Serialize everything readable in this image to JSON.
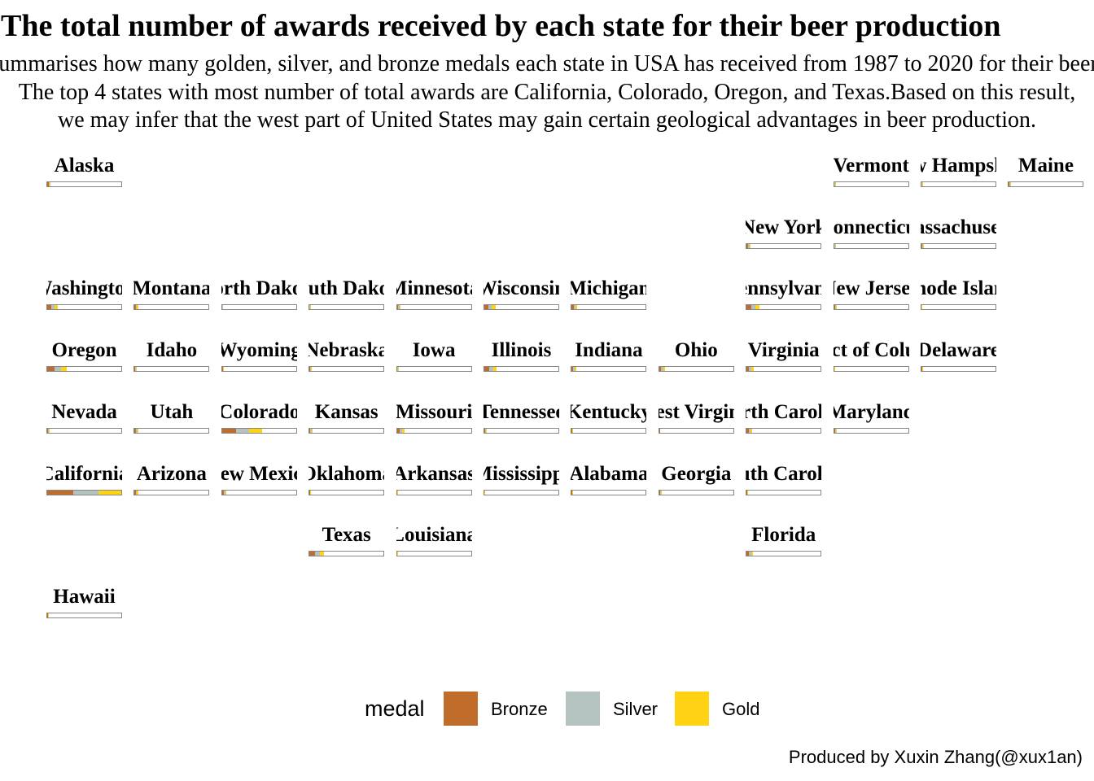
{
  "header": {
    "title": "The total number of awards received by each state for their beer production",
    "subtitle_lines": [
      "This graph summarises how many golden, silver, and bronze medals each state in USA has received from 1987 to 2020 for their beer production.",
      "The top 4 states with most number of total awards are California, Colorado, Oregon, and Texas.Based on this result,",
      "we may infer that the west  part of United States may gain certain geological advantages in beer production."
    ]
  },
  "caption": "Produced by Xuxin Zhang(@xux1an)",
  "colors": {
    "Bronze": "#C06C2A",
    "Silver": "#B5C3C0",
    "Gold": "#FFD314"
  },
  "legend": {
    "title": "medal",
    "items": [
      "Bronze",
      "Silver",
      "Gold"
    ]
  },
  "chart_data": {
    "type": "bar",
    "layout": "state-grid",
    "medals": [
      "Bronze",
      "Silver",
      "Gold"
    ],
    "states": [
      {
        "name": "Alaska",
        "col": 0,
        "row": 0,
        "bronze": 30,
        "silver": 28,
        "gold": 25
      },
      {
        "name": "Vermont",
        "col": 9,
        "row": 0,
        "bronze": 15,
        "silver": 15,
        "gold": 12
      },
      {
        "name": "New Hampshire",
        "col": 10,
        "row": 0,
        "bronze": 8,
        "silver": 7,
        "gold": 6
      },
      {
        "name": "Maine",
        "col": 11,
        "row": 0,
        "bronze": 12,
        "silver": 12,
        "gold": 10
      },
      {
        "name": "New York",
        "col": 8,
        "row": 1,
        "bronze": 35,
        "silver": 32,
        "gold": 28
      },
      {
        "name": "Connecticut",
        "col": 9,
        "row": 1,
        "bronze": 10,
        "silver": 9,
        "gold": 8
      },
      {
        "name": "Massachusetts",
        "col": 10,
        "row": 1,
        "bronze": 25,
        "silver": 22,
        "gold": 20
      },
      {
        "name": "Washington",
        "col": 0,
        "row": 2,
        "bronze": 90,
        "silver": 85,
        "gold": 80
      },
      {
        "name": "Montana",
        "col": 1,
        "row": 2,
        "bronze": 30,
        "silver": 28,
        "gold": 25
      },
      {
        "name": "North Dakota",
        "col": 2,
        "row": 2,
        "bronze": 2,
        "silver": 2,
        "gold": 1
      },
      {
        "name": "South Dakota",
        "col": 3,
        "row": 2,
        "bronze": 4,
        "silver": 3,
        "gold": 2
      },
      {
        "name": "Minnesota",
        "col": 4,
        "row": 2,
        "bronze": 35,
        "silver": 30,
        "gold": 28
      },
      {
        "name": "Wisconsin",
        "col": 5,
        "row": 2,
        "bronze": 95,
        "silver": 90,
        "gold": 85
      },
      {
        "name": "Michigan",
        "col": 6,
        "row": 2,
        "bronze": 50,
        "silver": 45,
        "gold": 40
      },
      {
        "name": "Pennsylvania",
        "col": 8,
        "row": 2,
        "bronze": 110,
        "silver": 100,
        "gold": 95
      },
      {
        "name": "New Jersey",
        "col": 9,
        "row": 2,
        "bronze": 20,
        "silver": 18,
        "gold": 16
      },
      {
        "name": "Rhode Island",
        "col": 10,
        "row": 2,
        "bronze": 5,
        "silver": 4,
        "gold": 3
      },
      {
        "name": "Oregon",
        "col": 0,
        "row": 3,
        "bronze": 170,
        "silver": 160,
        "gold": 150
      },
      {
        "name": "Idaho",
        "col": 1,
        "row": 3,
        "bronze": 15,
        "silver": 14,
        "gold": 12
      },
      {
        "name": "Wyoming",
        "col": 2,
        "row": 3,
        "bronze": 15,
        "silver": 13,
        "gold": 12
      },
      {
        "name": "Nebraska",
        "col": 3,
        "row": 3,
        "bronze": 15,
        "silver": 14,
        "gold": 12
      },
      {
        "name": "Iowa",
        "col": 4,
        "row": 3,
        "bronze": 15,
        "silver": 13,
        "gold": 11
      },
      {
        "name": "Illinois",
        "col": 5,
        "row": 3,
        "bronze": 110,
        "silver": 100,
        "gold": 95
      },
      {
        "name": "Indiana",
        "col": 6,
        "row": 3,
        "bronze": 40,
        "silver": 36,
        "gold": 32
      },
      {
        "name": "Ohio",
        "col": 7,
        "row": 3,
        "bronze": 50,
        "silver": 45,
        "gold": 40
      },
      {
        "name": "Virginia",
        "col": 8,
        "row": 3,
        "bronze": 60,
        "silver": 55,
        "gold": 50
      },
      {
        "name": "District of Columbia",
        "col": 9,
        "row": 3,
        "bronze": 8,
        "silver": 7,
        "gold": 6
      },
      {
        "name": "Delaware",
        "col": 10,
        "row": 3,
        "bronze": 12,
        "silver": 11,
        "gold": 10
      },
      {
        "name": "Nevada",
        "col": 0,
        "row": 4,
        "bronze": 25,
        "silver": 22,
        "gold": 20
      },
      {
        "name": "Utah",
        "col": 1,
        "row": 4,
        "bronze": 35,
        "silver": 33,
        "gold": 30
      },
      {
        "name": "Colorado",
        "col": 2,
        "row": 4,
        "bronze": 340,
        "silver": 320,
        "gold": 300
      },
      {
        "name": "Kansas",
        "col": 3,
        "row": 4,
        "bronze": 25,
        "silver": 22,
        "gold": 20
      },
      {
        "name": "Missouri",
        "col": 4,
        "row": 4,
        "bronze": 70,
        "silver": 65,
        "gold": 60
      },
      {
        "name": "Tennessee",
        "col": 5,
        "row": 4,
        "bronze": 20,
        "silver": 18,
        "gold": 16
      },
      {
        "name": "Kentucky",
        "col": 6,
        "row": 4,
        "bronze": 10,
        "silver": 9,
        "gold": 8
      },
      {
        "name": "West Virginia",
        "col": 7,
        "row": 4,
        "bronze": 2,
        "silver": 1,
        "gold": 1
      },
      {
        "name": "North Carolina",
        "col": 8,
        "row": 4,
        "bronze": 50,
        "silver": 45,
        "gold": 40
      },
      {
        "name": "Maryland",
        "col": 9,
        "row": 4,
        "bronze": 25,
        "silver": 23,
        "gold": 20
      },
      {
        "name": "California",
        "col": 0,
        "row": 5,
        "bronze": 630,
        "silver": 600,
        "gold": 560
      },
      {
        "name": "Arizona",
        "col": 1,
        "row": 5,
        "bronze": 30,
        "silver": 27,
        "gold": 25
      },
      {
        "name": "New Mexico",
        "col": 2,
        "row": 5,
        "bronze": 40,
        "silver": 36,
        "gold": 33
      },
      {
        "name": "Oklahoma",
        "col": 3,
        "row": 5,
        "bronze": 10,
        "silver": 9,
        "gold": 8
      },
      {
        "name": "Arkansas",
        "col": 4,
        "row": 5,
        "bronze": 5,
        "silver": 4,
        "gold": 4
      },
      {
        "name": "Mississippi",
        "col": 5,
        "row": 5,
        "bronze": 3,
        "silver": 3,
        "gold": 2
      },
      {
        "name": "Alabama",
        "col": 6,
        "row": 5,
        "bronze": 5,
        "silver": 4,
        "gold": 4
      },
      {
        "name": "Georgia",
        "col": 7,
        "row": 5,
        "bronze": 25,
        "silver": 23,
        "gold": 20
      },
      {
        "name": "South Carolina",
        "col": 8,
        "row": 5,
        "bronze": 10,
        "silver": 9,
        "gold": 8
      },
      {
        "name": "Texas",
        "col": 3,
        "row": 6,
        "bronze": 130,
        "silver": 120,
        "gold": 110
      },
      {
        "name": "Louisiana",
        "col": 4,
        "row": 6,
        "bronze": 8,
        "silver": 7,
        "gold": 6
      },
      {
        "name": "Florida",
        "col": 8,
        "row": 6,
        "bronze": 55,
        "silver": 50,
        "gold": 45
      },
      {
        "name": "Hawaii",
        "col": 0,
        "row": 7,
        "bronze": 12,
        "silver": 11,
        "gold": 10
      }
    ]
  }
}
